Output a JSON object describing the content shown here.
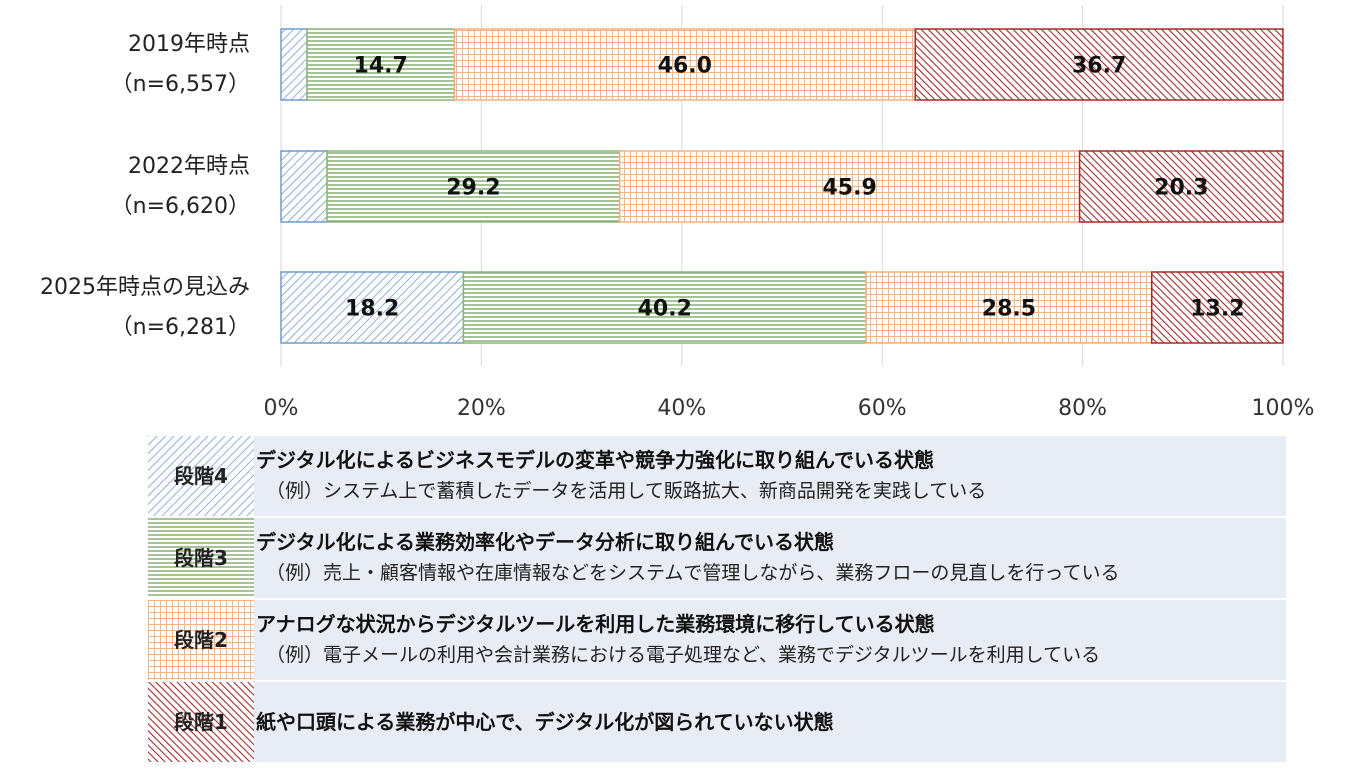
{
  "chart_data": {
    "type": "bar",
    "orientation": "horizontal",
    "stacked": true,
    "categories": [
      {
        "label": "2019年時点",
        "n": "（n=6,557）"
      },
      {
        "label": "2022年時点",
        "n": "（n=6,620）"
      },
      {
        "label": "2025年時点の見込み",
        "n": "（n=6,281）"
      }
    ],
    "series": [
      {
        "name": "段階4",
        "values": [
          2.6,
          4.6,
          18.2
        ],
        "labels": [
          "",
          "",
          "18.2"
        ],
        "color": "#6f9bd0",
        "pattern": "diagonal"
      },
      {
        "name": "段階3",
        "values": [
          14.7,
          29.2,
          40.2
        ],
        "labels": [
          "14.7",
          "29.2",
          "40.2"
        ],
        "color": "#8fb47e",
        "pattern": "horizontal"
      },
      {
        "name": "段階2",
        "values": [
          46.0,
          45.9,
          28.5
        ],
        "labels": [
          "46.0",
          "45.9",
          "28.5"
        ],
        "color": "#f2b482",
        "pattern": "grid"
      },
      {
        "name": "段階1",
        "values": [
          36.7,
          20.3,
          13.2
        ],
        "labels": [
          "36.7",
          "20.3",
          "13.2"
        ],
        "color": "#a52a2a",
        "pattern": "dense-diagonal"
      }
    ],
    "xticks": [
      "0%",
      "20%",
      "40%",
      "60%",
      "80%",
      "100%"
    ],
    "xlim": [
      0,
      100
    ],
    "grid": true
  },
  "legend": [
    {
      "stage": "段階4",
      "title": "デジタル化によるビジネスモデルの変革や競争力強化に取り組んでいる状態",
      "example": "（例）システム上で蓄積したデータを活用して販路拡大、新商品開発を実践している"
    },
    {
      "stage": "段階3",
      "title": "デジタル化による業務効率化やデータ分析に取り組んでいる状態",
      "example": "（例）売上・顧客情報や在庫情報などをシステムで管理しながら、業務フローの見直しを行っている"
    },
    {
      "stage": "段階2",
      "title": "アナログな状況からデジタルツールを利用した業務環境に移行している状態",
      "example": "（例）電子メールの利用や会計業務における電子処理など、業務でデジタルツールを利用している"
    },
    {
      "stage": "段階1",
      "title": "紙や口頭による業務が中心で、デジタル化が図られていない状態",
      "example": ""
    }
  ]
}
